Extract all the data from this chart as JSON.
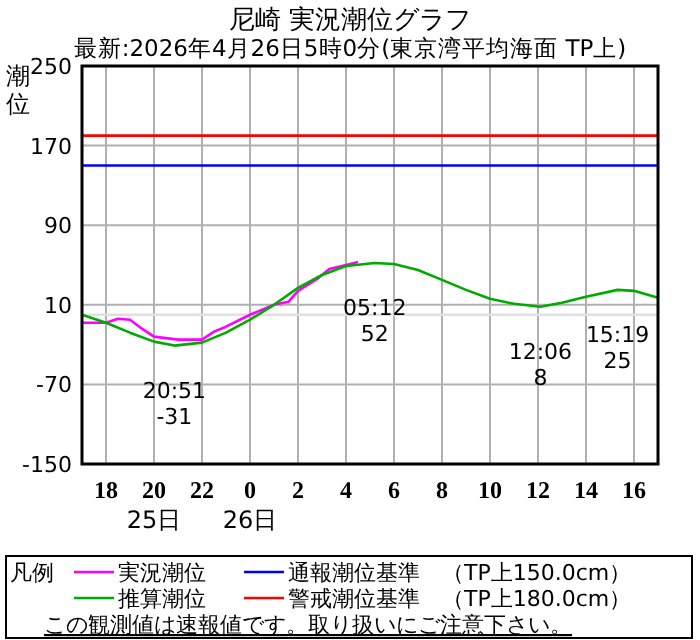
{
  "chart_data": {
    "type": "line",
    "title": "尼崎 実況潮位グラフ",
    "subtitle": "最新:2026年4月26日5時0分(東京湾平均海面 TP上)",
    "ylabel": "潮位",
    "legend_title": "凡例",
    "legend": "bottom",
    "grid": true,
    "marker": "none",
    "line_style": "solid",
    "xlim": [
      "2026-04-25T17:00",
      "2026-04-26T17:00"
    ],
    "xticks": [
      {
        "value": "2026-04-25T18:00",
        "label": "18"
      },
      {
        "value": "2026-04-25T20:00",
        "label": "20\n25日"
      },
      {
        "value": "2026-04-25T22:00",
        "label": "22"
      },
      {
        "value": "2026-04-26T00:00",
        "label": "0\n26日"
      },
      {
        "value": "2026-04-26T02:00",
        "label": "2"
      },
      {
        "value": "2026-04-26T04:00",
        "label": "4"
      },
      {
        "value": "2026-04-26T06:00",
        "label": "6"
      },
      {
        "value": "2026-04-26T08:00",
        "label": "8"
      },
      {
        "value": "2026-04-26T10:00",
        "label": "10"
      },
      {
        "value": "2026-04-26T12:00",
        "label": "12"
      },
      {
        "value": "2026-04-26T14:00",
        "label": "14"
      },
      {
        "value": "2026-04-26T16:00",
        "label": "16"
      }
    ],
    "ylim": [
      -150,
      250
    ],
    "yticks": [
      -150,
      -70,
      10,
      90,
      170,
      250
    ],
    "series": [
      {
        "name": "実況潮位",
        "color": "#ff00ff",
        "x": [
          "2026-04-25T17:00",
          "2026-04-25T18:00",
          "2026-04-25T18:30",
          "2026-04-25T19:00",
          "2026-04-25T19:30",
          "2026-04-25T20:00",
          "2026-04-25T21:00",
          "2026-04-25T22:00",
          "2026-04-25T22:30",
          "2026-04-25T23:00",
          "2026-04-26T00:00",
          "2026-04-26T01:00",
          "2026-04-26T01:36",
          "2026-04-26T02:00",
          "2026-04-26T02:48",
          "2026-04-26T03:18",
          "2026-04-26T04:00",
          "2026-04-26T04:30"
        ],
        "values": [
          -8,
          -8,
          -4,
          -5,
          -14,
          -22,
          -25,
          -25,
          -17,
          -12,
          0,
          10,
          13,
          24,
          36,
          46,
          50,
          53
        ]
      },
      {
        "name": "推算潮位",
        "color": "#00aa00",
        "x": [
          "2026-04-25T17:00",
          "2026-04-25T18:00",
          "2026-04-25T19:00",
          "2026-04-25T20:00",
          "2026-04-25T20:51",
          "2026-04-25T22:00",
          "2026-04-25T23:00",
          "2026-04-26T00:00",
          "2026-04-26T01:00",
          "2026-04-26T02:00",
          "2026-04-26T03:00",
          "2026-04-26T04:00",
          "2026-04-26T05:12",
          "2026-04-26T06:00",
          "2026-04-26T07:00",
          "2026-04-26T08:00",
          "2026-04-26T09:00",
          "2026-04-26T10:00",
          "2026-04-26T11:00",
          "2026-04-26T12:06",
          "2026-04-26T13:00",
          "2026-04-26T14:00",
          "2026-04-26T15:19",
          "2026-04-26T16:00",
          "2026-04-26T17:00"
        ],
        "values": [
          0,
          -8,
          -18,
          -27,
          -31,
          -28,
          -18,
          -5,
          10,
          27,
          40,
          49,
          52,
          51,
          45,
          35,
          25,
          16,
          11,
          8,
          12,
          18,
          25,
          24,
          17
        ]
      }
    ],
    "ref_lines": [
      {
        "axis": "y",
        "value": 150,
        "label": "通報潮位基準　（TP上150.0cm）",
        "color": "#0000ff"
      },
      {
        "axis": "y",
        "value": 180,
        "label": "警戒潮位基準　（TP上180.0cm）",
        "color": "#ff0000"
      },
      {
        "axis": "y",
        "value": 0,
        "color": "#e0e0e0"
      }
    ],
    "annotations": [
      {
        "text": "20:51\n-31",
        "x": "2026-04-25T20:51",
        "y": -31
      },
      {
        "text": "05:12\n52",
        "x": "2026-04-26T05:12",
        "y": 52
      },
      {
        "text": "12:06\n8",
        "x": "2026-04-26T12:06",
        "y": 8
      },
      {
        "text": "15:19\n25",
        "x": "2026-04-26T15:19",
        "y": 25
      },
      "この観測値は速報値です。取り扱いにご注意下さい。"
    ]
  }
}
